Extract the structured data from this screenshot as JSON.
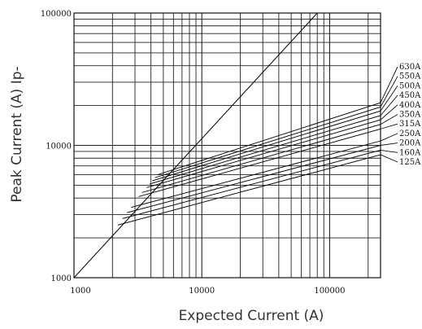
{
  "chart_data": {
    "type": "line",
    "title": "",
    "xlabel": "Expected Current (A)",
    "ylabel": "Peak Current (A)   Ip-",
    "x_scale": "log",
    "y_scale": "log",
    "xlim": [
      1000,
      250000
    ],
    "ylim": [
      1000,
      100000
    ],
    "grid": true,
    "legend": "right",
    "xticks": [
      {
        "value": 1000,
        "label": "1000"
      },
      {
        "value": 10000,
        "label": "10000"
      },
      {
        "value": 100000,
        "label": "100000"
      }
    ],
    "yticks": [
      {
        "value": 1000,
        "label": "1000"
      },
      {
        "value": 10000,
        "label": "10000"
      },
      {
        "value": 100000,
        "label": "100000"
      }
    ],
    "reference_line": {
      "x": [
        1000,
        80000
      ],
      "y": [
        1000,
        100000
      ]
    },
    "series": [
      {
        "name": "630A",
        "x": [
          4500,
          250000
        ],
        "y": [
          6000,
          21000
        ]
      },
      {
        "name": "550A",
        "x": [
          4300,
          250000
        ],
        "y": [
          5700,
          19500
        ]
      },
      {
        "name": "500A",
        "x": [
          4100,
          250000
        ],
        "y": [
          5400,
          18200
        ]
      },
      {
        "name": "450A",
        "x": [
          3900,
          250000
        ],
        "y": [
          5100,
          16800
        ]
      },
      {
        "name": "400A",
        "x": [
          3700,
          250000
        ],
        "y": [
          4800,
          15600
        ]
      },
      {
        "name": "350A",
        "x": [
          3400,
          250000
        ],
        "y": [
          4400,
          14400
        ]
      },
      {
        "name": "315A",
        "x": [
          3200,
          250000
        ],
        "y": [
          4100,
          13300
        ]
      },
      {
        "name": "250A",
        "x": [
          2800,
          250000
        ],
        "y": [
          3400,
          10800
        ]
      },
      {
        "name": "200A",
        "x": [
          2600,
          250000
        ],
        "y": [
          3100,
          10000
        ]
      },
      {
        "name": "160A",
        "x": [
          2400,
          250000
        ],
        "y": [
          2800,
          9200
        ]
      },
      {
        "name": "125A",
        "x": [
          2200,
          250000
        ],
        "y": [
          2500,
          8500
        ]
      }
    ]
  }
}
